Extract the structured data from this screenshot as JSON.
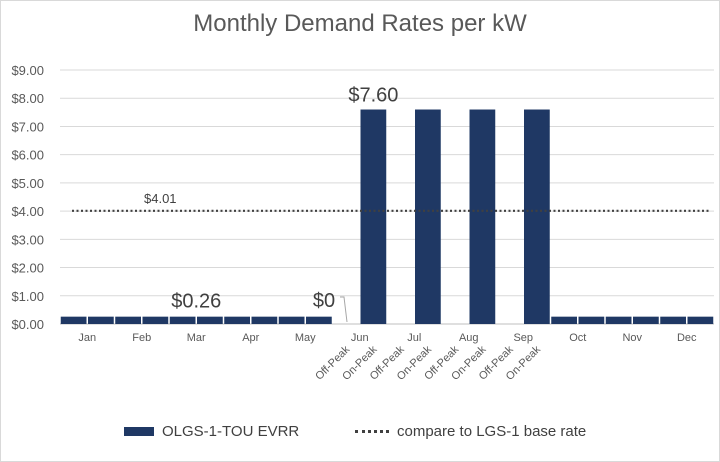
{
  "chart_data": {
    "type": "bar",
    "title": "Monthly Demand Rates per kW",
    "ylim": [
      0,
      9
    ],
    "yticks": [
      "$0.00",
      "$1.00",
      "$2.00",
      "$3.00",
      "$4.00",
      "$5.00",
      "$6.00",
      "$7.00",
      "$8.00",
      "$9.00"
    ],
    "months": [
      "Jan",
      "Feb",
      "Mar",
      "Apr",
      "May",
      "Jun",
      "Jul",
      "Aug",
      "Sep",
      "Oct",
      "Nov",
      "Dec"
    ],
    "period_labels": [
      "Off-Peak",
      "On-Peak",
      "Off-Peak",
      "On-Peak",
      "Off-Peak",
      "On-Peak",
      "Off-Peak",
      "On-Peak"
    ],
    "categories": [
      "Jan-1",
      "Jan-2",
      "Feb-1",
      "Feb-2",
      "Mar-1",
      "Mar-2",
      "Apr-1",
      "Apr-2",
      "May-1",
      "May-2",
      "Jun Off-Peak",
      "Jun On-Peak",
      "Jul Off-Peak",
      "Jul On-Peak",
      "Aug Off-Peak",
      "Aug On-Peak",
      "Sep Off-Peak",
      "Sep On-Peak",
      "Oct-1",
      "Oct-2",
      "Nov-1",
      "Nov-2",
      "Dec-1",
      "Dec-2"
    ],
    "series": [
      {
        "name": "OLGS-1-TOU EVRR",
        "color": "#1f3864",
        "values": [
          0.26,
          0.26,
          0.26,
          0.26,
          0.26,
          0.26,
          0.26,
          0.26,
          0.26,
          0.26,
          0,
          7.6,
          0,
          7.6,
          0,
          7.6,
          0,
          7.6,
          0.26,
          0.26,
          0.26,
          0.26,
          0.26,
          0.26
        ]
      }
    ],
    "reference_line": {
      "name": "compare to LGS-1 base rate",
      "value": 4.01,
      "label": "$4.01",
      "style": "dotted"
    },
    "annotations": [
      {
        "text": "$7.60",
        "value": 7.6
      },
      {
        "text": "$0.26",
        "value": 0.26
      },
      {
        "text": "$0",
        "value": 0
      }
    ],
    "legend_position": "bottom",
    "gridlines": true
  }
}
